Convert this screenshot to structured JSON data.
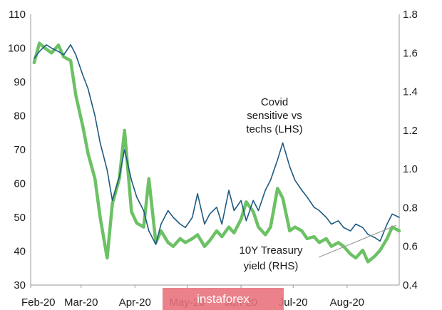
{
  "chart_data": {
    "type": "line",
    "title": "",
    "xlabel": "",
    "ylabel": "",
    "x_ticks": [
      "Feb-20",
      "Mar-20",
      "Apr-20",
      "May-20",
      "Jun-20",
      "Jul-20",
      "Aug-20"
    ],
    "x_range": [
      "2020-02-01",
      "2020-08-31"
    ],
    "y_left": {
      "range": [
        30,
        110
      ],
      "ticks": [
        30,
        40,
        50,
        60,
        70,
        80,
        90,
        100,
        110
      ]
    },
    "y_right": {
      "range": [
        0.4,
        1.8
      ],
      "ticks": [
        "0.4",
        "0.6",
        "0.8",
        "1.0",
        "1.2",
        "1.4",
        "1.6",
        "1.8"
      ]
    },
    "grid": false,
    "series": [
      {
        "name": "Covid sensitive vs techs (LHS)",
        "axis": "left",
        "color": "#1f5a80",
        "x": [
          "2020-02-03",
          "2020-02-06",
          "2020-02-10",
          "2020-02-13",
          "2020-02-17",
          "2020-02-20",
          "2020-02-24",
          "2020-02-27",
          "2020-03-02",
          "2020-03-05",
          "2020-03-09",
          "2020-03-12",
          "2020-03-16",
          "2020-03-19",
          "2020-03-23",
          "2020-03-26",
          "2020-03-30",
          "2020-04-02",
          "2020-04-06",
          "2020-04-09",
          "2020-04-13",
          "2020-04-16",
          "2020-04-20",
          "2020-04-23",
          "2020-04-27",
          "2020-04-30",
          "2020-05-04",
          "2020-05-07",
          "2020-05-11",
          "2020-05-14",
          "2020-05-18",
          "2020-05-21",
          "2020-05-25",
          "2020-05-28",
          "2020-06-01",
          "2020-06-04",
          "2020-06-08",
          "2020-06-11",
          "2020-06-15",
          "2020-06-18",
          "2020-06-22",
          "2020-06-25",
          "2020-06-29",
          "2020-07-02",
          "2020-07-06",
          "2020-07-09",
          "2020-07-13",
          "2020-07-16",
          "2020-07-20",
          "2020-07-23",
          "2020-07-27",
          "2020-07-30",
          "2020-08-03",
          "2020-08-06",
          "2020-08-10",
          "2020-08-13",
          "2020-08-17",
          "2020-08-20",
          "2020-08-24",
          "2020-08-27",
          "2020-08-31"
        ],
        "values": [
          97,
          99,
          101,
          100,
          99,
          98,
          101,
          98,
          92,
          88,
          80,
          72,
          64,
          55,
          62,
          70,
          61,
          56,
          52,
          46,
          42,
          48,
          52,
          50,
          48,
          47,
          50,
          57,
          48,
          51,
          53,
          48,
          58,
          52,
          55,
          49,
          55,
          52,
          58,
          61,
          67,
          72,
          65,
          61,
          58,
          56,
          53,
          52,
          50,
          48,
          49,
          47,
          46,
          48,
          47,
          45,
          44,
          43,
          48,
          51,
          50
        ]
      },
      {
        "name": "10Y Treasury yield (RHS)",
        "axis": "right",
        "color": "#6cc165",
        "x": [
          "2020-02-03",
          "2020-02-06",
          "2020-02-10",
          "2020-02-13",
          "2020-02-17",
          "2020-02-20",
          "2020-02-24",
          "2020-02-27",
          "2020-03-02",
          "2020-03-05",
          "2020-03-09",
          "2020-03-12",
          "2020-03-16",
          "2020-03-19",
          "2020-03-23",
          "2020-03-26",
          "2020-03-30",
          "2020-04-02",
          "2020-04-06",
          "2020-04-09",
          "2020-04-13",
          "2020-04-16",
          "2020-04-20",
          "2020-04-23",
          "2020-04-27",
          "2020-04-30",
          "2020-05-04",
          "2020-05-07",
          "2020-05-11",
          "2020-05-14",
          "2020-05-18",
          "2020-05-21",
          "2020-05-25",
          "2020-05-28",
          "2020-06-01",
          "2020-06-04",
          "2020-06-08",
          "2020-06-11",
          "2020-06-15",
          "2020-06-18",
          "2020-06-22",
          "2020-06-25",
          "2020-06-29",
          "2020-07-02",
          "2020-07-06",
          "2020-07-09",
          "2020-07-13",
          "2020-07-16",
          "2020-07-20",
          "2020-07-23",
          "2020-07-27",
          "2020-07-30",
          "2020-08-03",
          "2020-08-06",
          "2020-08-10",
          "2020-08-13",
          "2020-08-17",
          "2020-08-20",
          "2020-08-24",
          "2020-08-27",
          "2020-08-31"
        ],
        "values": [
          1.55,
          1.65,
          1.62,
          1.6,
          1.64,
          1.58,
          1.56,
          1.38,
          1.22,
          1.08,
          0.95,
          0.75,
          0.54,
          0.82,
          0.95,
          1.2,
          0.78,
          0.72,
          0.7,
          0.95,
          0.62,
          0.68,
          0.62,
          0.6,
          0.64,
          0.62,
          0.64,
          0.66,
          0.6,
          0.63,
          0.68,
          0.65,
          0.7,
          0.67,
          0.74,
          0.83,
          0.78,
          0.7,
          0.66,
          0.7,
          0.9,
          0.85,
          0.68,
          0.7,
          0.68,
          0.64,
          0.65,
          0.62,
          0.64,
          0.6,
          0.62,
          0.6,
          0.56,
          0.54,
          0.58,
          0.52,
          0.55,
          0.58,
          0.64,
          0.7,
          0.68
        ]
      }
    ],
    "annotations": {
      "covid_lines": [
        "Covid",
        "sensitive vs",
        "techs (LHS)"
      ],
      "yield_lines": [
        "10Y Treasury",
        "yield (RHS)"
      ]
    }
  },
  "watermark": "instaforex"
}
